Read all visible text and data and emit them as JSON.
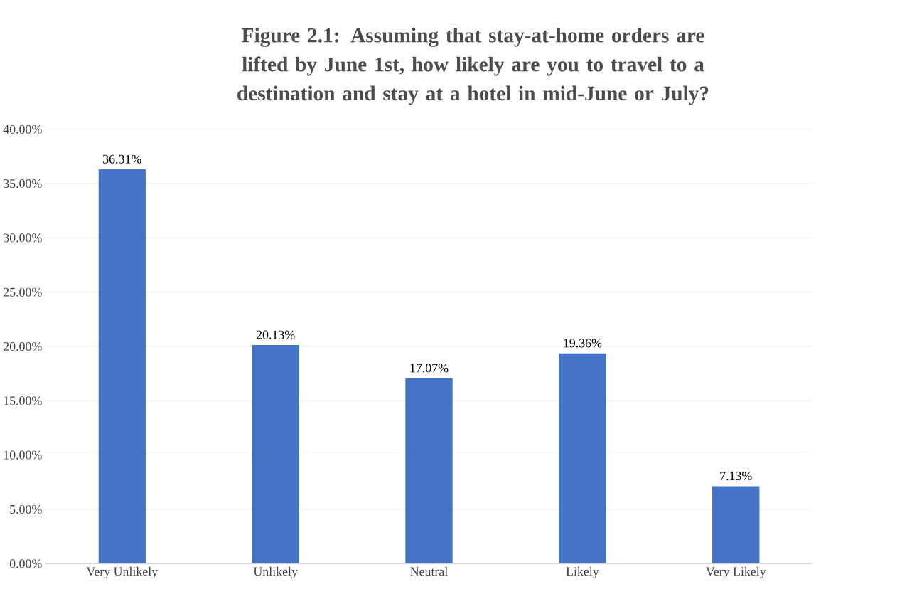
{
  "chart_data": {
    "type": "bar",
    "title": "Figure 2.1: Assuming that stay-at-home orders are lifted by June 1st, how likely are you to travel to a destination and stay at a hotel in mid-June or July?",
    "categories": [
      "Very Unlikely",
      "Unlikely",
      "Neutral",
      "Likely",
      "Very Likely"
    ],
    "values": [
      36.31,
      20.13,
      17.07,
      19.36,
      7.13
    ],
    "value_labels": [
      "36.31%",
      "20.13%",
      "17.07%",
      "19.36%",
      "7.13%"
    ],
    "color": "#4472c4",
    "ylim": [
      0,
      40
    ],
    "yticks": [
      {
        "value": 0,
        "label": "0.00%"
      },
      {
        "value": 5,
        "label": "5.00%"
      },
      {
        "value": 10,
        "label": "10.00%"
      },
      {
        "value": 15,
        "label": "15.00%"
      },
      {
        "value": 20,
        "label": "20.00%"
      },
      {
        "value": 25,
        "label": "25.00%"
      },
      {
        "value": 30,
        "label": "30.00%"
      },
      {
        "value": 35,
        "label": "35.00%"
      },
      {
        "value": 40,
        "label": "40.00%"
      }
    ],
    "grid": "y"
  }
}
